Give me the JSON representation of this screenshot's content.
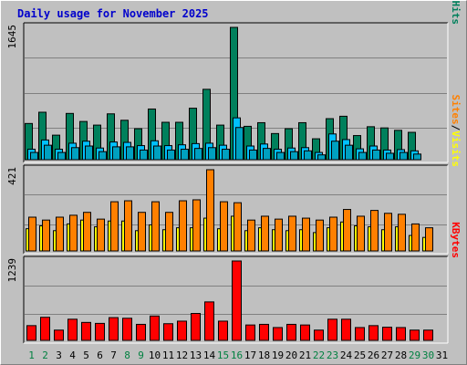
{
  "page": {
    "title": "Daily usage for November 2025"
  },
  "colors": {
    "hits": "#00805c",
    "files": "#00c0ff",
    "visits": "#ffff00",
    "sites": "#ff8000",
    "kbytes": "#ff0000",
    "title": "#0000cc",
    "weekend": "#008040",
    "weekday": "#000000"
  },
  "chart_data": {
    "type": "bar",
    "title": "Daily usage for November 2025",
    "days": [
      "1",
      "2",
      "3",
      "4",
      "5",
      "6",
      "7",
      "8",
      "9",
      "10",
      "11",
      "12",
      "13",
      "14",
      "15",
      "16",
      "17",
      "18",
      "19",
      "20",
      "21",
      "22",
      "23",
      "24",
      "25",
      "26",
      "27",
      "28",
      "29",
      "30",
      "31"
    ],
    "weekend_days": [
      "1",
      "2",
      "8",
      "9",
      "15",
      "16",
      "22",
      "23",
      "29",
      "30"
    ],
    "panels": [
      {
        "key": "hits",
        "max_label": "1645",
        "ymax": 1645,
        "legend": [
          {
            "text": "Hits",
            "color": "#00805c"
          },
          {
            "text": "/",
            "color": "#000000"
          },
          {
            "text": "Files",
            "color": "#00c0ff"
          },
          {
            "text": "/",
            "color": "#000000"
          },
          {
            "text": "Pages",
            "color": "#00c0ff"
          }
        ],
        "series": [
          {
            "name": "Hits",
            "color": "#00805c",
            "values": [
              450,
              590,
              305,
              575,
              475,
              430,
              570,
              490,
              385,
              630,
              465,
              465,
              640,
              875,
              430,
              1645,
              415,
              460,
              325,
              385,
              460,
              260,
              510,
              540,
              300,
              410,
              395,
              365,
              340,
              0,
              0
            ]
          },
          {
            "name": "Files",
            "color": "#00c0ff",
            "values": [
              130,
              245,
              130,
              205,
              230,
              145,
              220,
              215,
              175,
              235,
              175,
              185,
              200,
              205,
              180,
              520,
              170,
              195,
              130,
              145,
              150,
              90,
              320,
              250,
              135,
              170,
              120,
              125,
              110,
              0,
              0
            ]
          },
          {
            "name": "Pages",
            "color": "#00a0c0",
            "values": [
              90,
              180,
              90,
              150,
              170,
              100,
              160,
              160,
              120,
              170,
              120,
              130,
              140,
              150,
              130,
              400,
              120,
              140,
              90,
              100,
              110,
              60,
              230,
              180,
              90,
              120,
              80,
              90,
              70,
              0,
              0
            ]
          }
        ]
      },
      {
        "key": "visits",
        "max_label": "421",
        "ymax": 421,
        "legend": [
          {
            "text": "Visits",
            "color": "#ffff00"
          },
          {
            "text": "/",
            "color": "#000000"
          },
          {
            "text": "Sites",
            "color": "#ff8000"
          }
        ],
        "series": [
          {
            "name": "Visits",
            "color": "#ffff00",
            "values": [
              115,
              130,
              105,
              140,
              160,
              125,
              155,
              155,
              105,
              135,
              110,
              120,
              120,
              170,
              115,
              180,
              105,
              120,
              110,
              105,
              110,
              95,
              120,
              150,
              130,
              125,
              110,
              125,
              80,
              70,
              0
            ]
          },
          {
            "name": "Sites",
            "color": "#ff8000",
            "values": [
              175,
              160,
              175,
              185,
              200,
              165,
              255,
              260,
              200,
              255,
              200,
              260,
              265,
              421,
              255,
              250,
              160,
              180,
              165,
              180,
              170,
              160,
              175,
              215,
              180,
              210,
              195,
              190,
              140,
              120,
              0
            ]
          }
        ]
      },
      {
        "key": "kbytes",
        "max_label": "1239",
        "ymax": 1239,
        "legend": [
          {
            "text": "KBytes",
            "color": "#ff0000"
          }
        ],
        "series": [
          {
            "name": "KBytes",
            "color": "#ff0000",
            "values": [
              230,
              360,
              160,
              330,
              280,
              265,
              355,
              345,
              250,
              380,
              260,
              300,
              420,
              600,
              300,
              1239,
              240,
              250,
              200,
              250,
              240,
              160,
              330,
              330,
              200,
              230,
              205,
              200,
              160,
              160,
              0
            ]
          }
        ]
      }
    ]
  }
}
